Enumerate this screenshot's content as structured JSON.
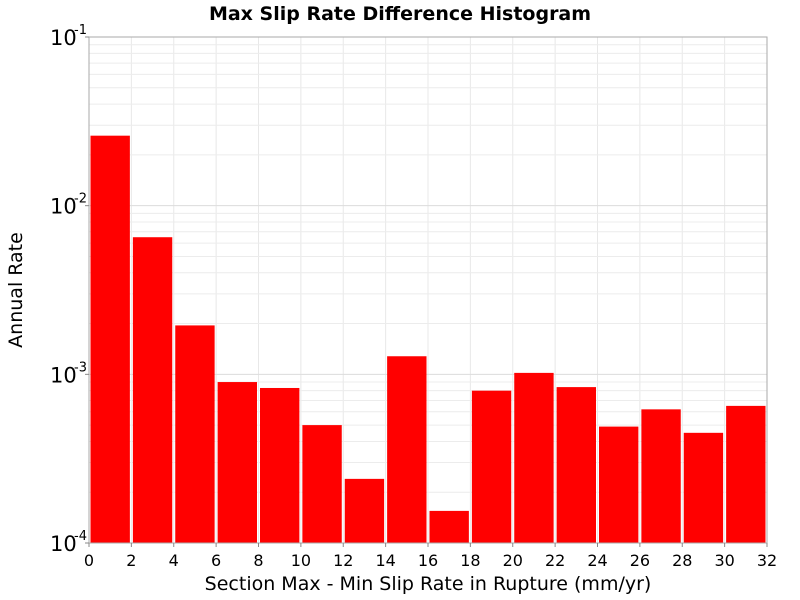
{
  "chart_data": {
    "type": "bar",
    "title": "Max Slip Rate Difference Histogram",
    "xlabel": "Section Max - Min Slip Rate in Rupture (mm/yr)",
    "ylabel": "Annual Rate",
    "y_scale": "log",
    "xlim": [
      0,
      32
    ],
    "ylim": [
      0.0001,
      0.1
    ],
    "x_ticks": [
      "0",
      "2",
      "4",
      "6",
      "8",
      "10",
      "12",
      "14",
      "16",
      "18",
      "20",
      "22",
      "24",
      "26",
      "28",
      "30",
      "32"
    ],
    "y_ticks": [
      {
        "base": "10",
        "exp": "-4",
        "value": 0.0001
      },
      {
        "base": "10",
        "exp": "-3",
        "value": 0.001
      },
      {
        "base": "10",
        "exp": "-2",
        "value": 0.01
      },
      {
        "base": "10",
        "exp": "-1",
        "value": 0.1
      }
    ],
    "grid": true,
    "bar_color": "#ff0000",
    "bins": [
      {
        "x_start": 0,
        "x_end": 2,
        "value": 0.026
      },
      {
        "x_start": 2,
        "x_end": 4,
        "value": 0.0065
      },
      {
        "x_start": 4,
        "x_end": 6,
        "value": 0.00195
      },
      {
        "x_start": 6,
        "x_end": 8,
        "value": 0.0009
      },
      {
        "x_start": 8,
        "x_end": 10,
        "value": 0.00083
      },
      {
        "x_start": 10,
        "x_end": 12,
        "value": 0.0005
      },
      {
        "x_start": 12,
        "x_end": 14,
        "value": 0.00024
      },
      {
        "x_start": 14,
        "x_end": 16,
        "value": 0.00128
      },
      {
        "x_start": 16,
        "x_end": 18,
        "value": 0.000155
      },
      {
        "x_start": 18,
        "x_end": 20,
        "value": 0.0008
      },
      {
        "x_start": 20,
        "x_end": 22,
        "value": 0.00102
      },
      {
        "x_start": 22,
        "x_end": 24,
        "value": 0.00084
      },
      {
        "x_start": 24,
        "x_end": 26,
        "value": 0.00049
      },
      {
        "x_start": 26,
        "x_end": 28,
        "value": 0.00062
      },
      {
        "x_start": 28,
        "x_end": 30,
        "value": 0.00045
      },
      {
        "x_start": 30,
        "x_end": 32,
        "value": 0.00065
      }
    ]
  }
}
